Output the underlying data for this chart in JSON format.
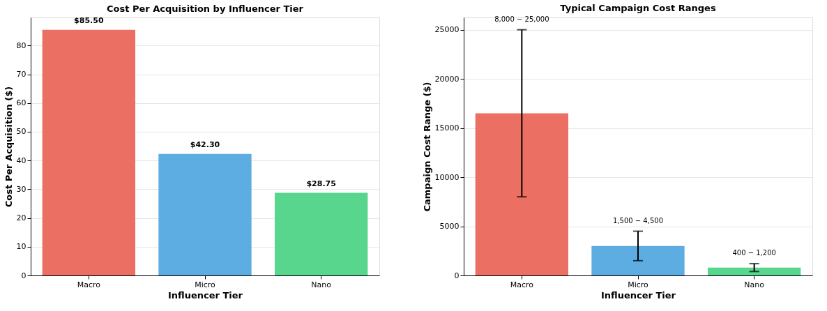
{
  "chart_data": [
    {
      "type": "bar",
      "title": "Cost Per Acquisition by Influencer Tier",
      "xlabel": "Influencer Tier",
      "ylabel": "Cost Per Acquisition ($)",
      "categories": [
        "Macro",
        "Micro",
        "Nano"
      ],
      "values": [
        85.5,
        42.3,
        28.75
      ],
      "colors": [
        "#eb7063",
        "#5dade2",
        "#58d68d"
      ],
      "value_labels": [
        "$85.50",
        "$42.30",
        "$28.75"
      ],
      "ylim": [
        0,
        89.8
      ],
      "yticks": [
        0,
        10,
        20,
        30,
        40,
        50,
        60,
        70,
        80
      ],
      "grid": "y",
      "legend": false
    },
    {
      "type": "bar",
      "title": "Typical Campaign Cost Ranges",
      "xlabel": "Influencer Tier",
      "ylabel": "Campaign Cost Range ($)",
      "categories": [
        "Macro",
        "Micro",
        "Nano"
      ],
      "values": [
        16500,
        3000,
        800
      ],
      "colors": [
        "#eb7063",
        "#5dade2",
        "#58d68d"
      ],
      "errors": [
        [
          8000,
          25000
        ],
        [
          1500,
          4500
        ],
        [
          400,
          1200
        ]
      ],
      "annotations": [
        {
          "text": "8,000 − 25,000",
          "x": "Macro",
          "y": 25000
        },
        {
          "text": "1,500 − 4,500",
          "x": "Micro",
          "y": 4500
        },
        {
          "text": "400 − 1,200",
          "x": "Nano",
          "y": 1200
        }
      ],
      "ylim": [
        0,
        26250
      ],
      "yticks": [
        0,
        5000,
        10000,
        15000,
        20000,
        25000
      ],
      "grid": "y",
      "legend": false
    }
  ]
}
